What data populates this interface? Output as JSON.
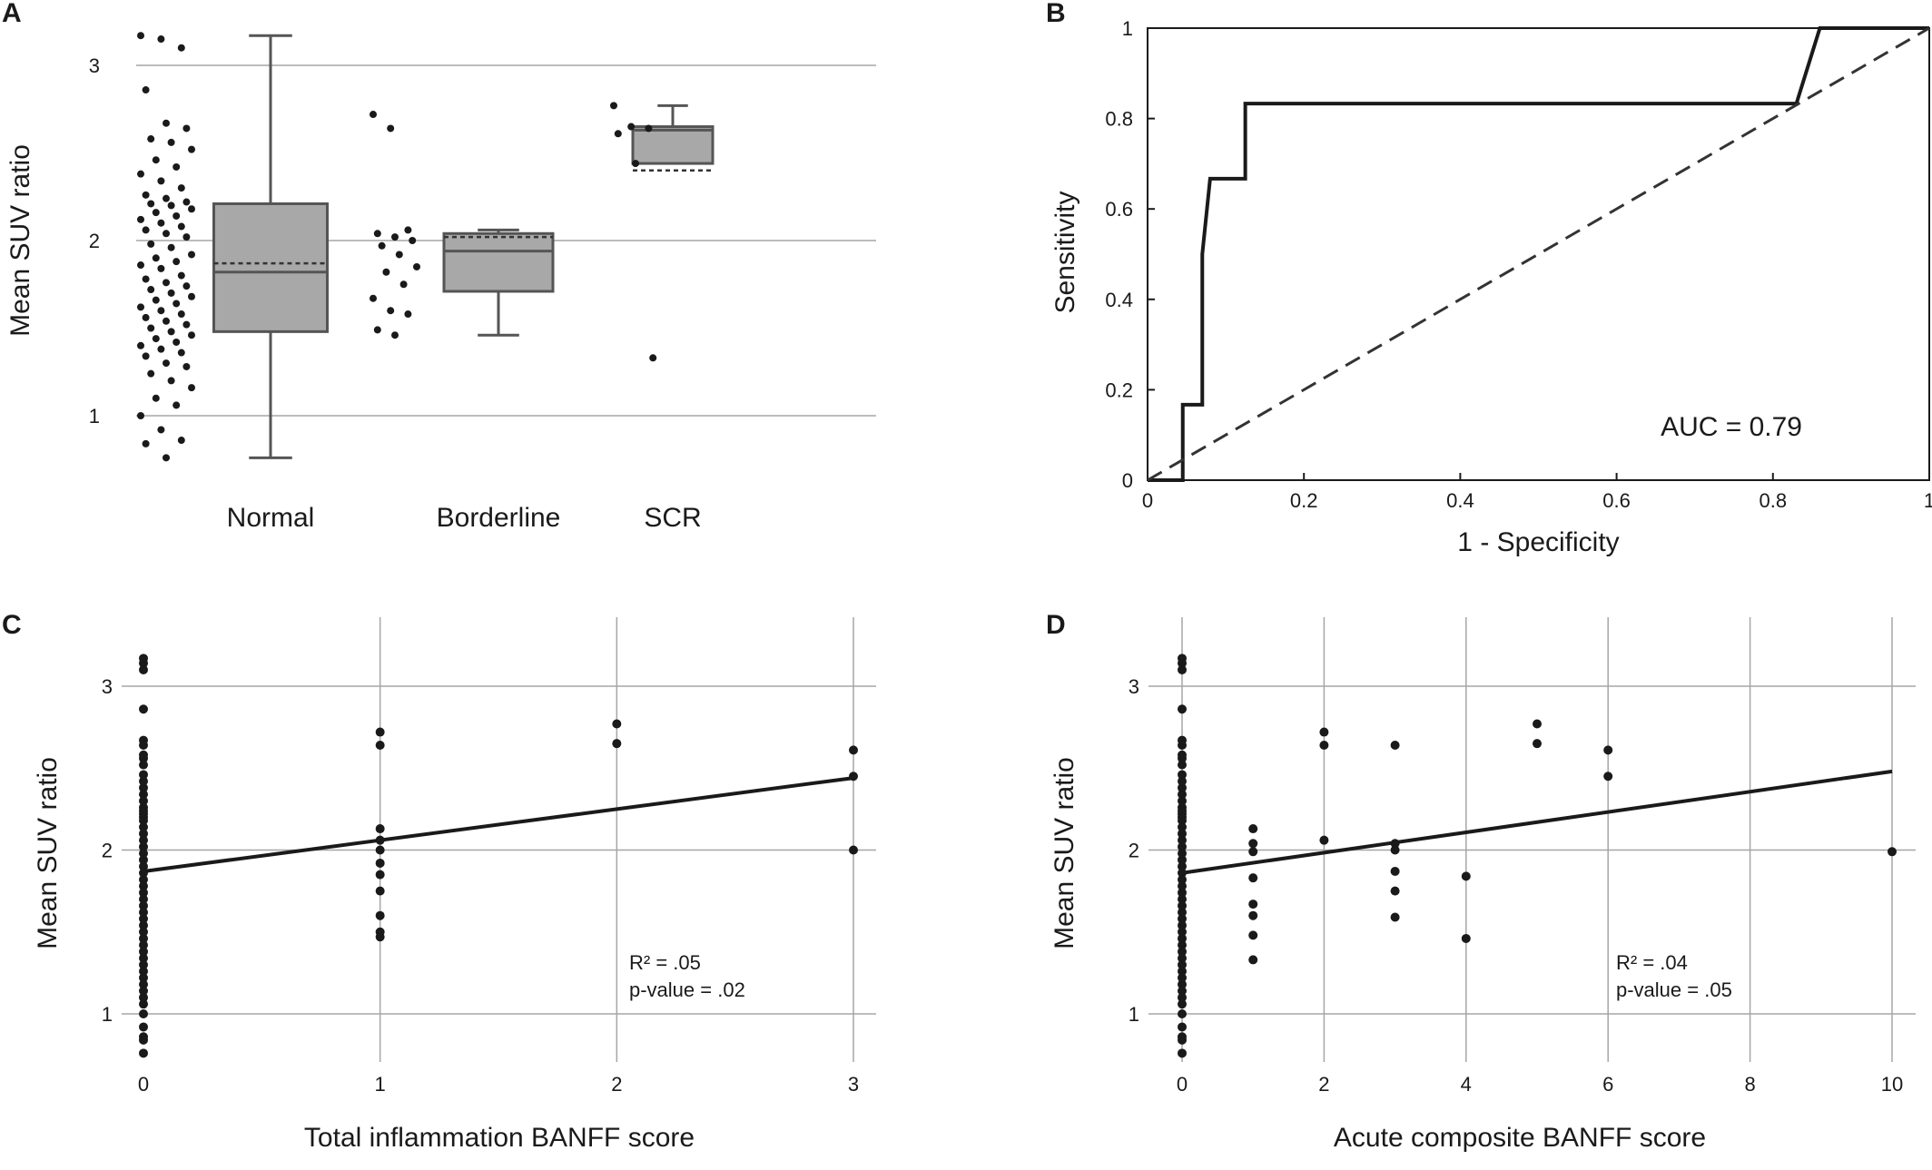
{
  "chart_data": [
    {
      "panel": "A",
      "type": "box",
      "title": "",
      "xlabel": "",
      "ylabel": "Mean SUV ratio",
      "ylim": [
        0.7,
        3.3
      ],
      "yticks": [
        "1",
        "2",
        "3"
      ],
      "grid": "horizontal",
      "categories": [
        "Normal",
        "Borderline",
        "SCR"
      ],
      "boxes": [
        {
          "category": "Normal",
          "min": 0.76,
          "q1": 1.48,
          "median": 1.82,
          "mean": 1.87,
          "q3": 2.21,
          "max": 3.17
        },
        {
          "category": "Borderline",
          "min": 1.46,
          "q1": 1.71,
          "median": 1.94,
          "mean": 2.02,
          "q3": 2.04,
          "max": 2.06
        },
        {
          "category": "SCR",
          "min": 2.44,
          "q1": 2.44,
          "median": 2.63,
          "mean": 2.4,
          "q3": 2.65,
          "max": 2.77
        }
      ],
      "points": {
        "Normal": [
          3.17,
          3.15,
          3.1,
          2.86,
          2.67,
          2.64,
          2.58,
          2.56,
          2.52,
          2.46,
          2.42,
          2.38,
          2.34,
          2.3,
          2.26,
          2.24,
          2.22,
          2.21,
          2.2,
          2.18,
          2.16,
          2.14,
          2.12,
          2.1,
          2.08,
          2.06,
          2.04,
          2.02,
          1.98,
          1.96,
          1.92,
          1.9,
          1.88,
          1.86,
          1.84,
          1.8,
          1.78,
          1.76,
          1.74,
          1.72,
          1.7,
          1.68,
          1.66,
          1.64,
          1.62,
          1.6,
          1.58,
          1.56,
          1.54,
          1.52,
          1.5,
          1.48,
          1.46,
          1.44,
          1.42,
          1.4,
          1.38,
          1.36,
          1.34,
          1.3,
          1.28,
          1.24,
          1.2,
          1.16,
          1.1,
          1.06,
          1.0,
          0.92,
          0.86,
          0.84,
          0.76
        ],
        "Borderline": [
          2.72,
          2.64,
          2.06,
          2.04,
          2.02,
          2.0,
          1.97,
          1.92,
          1.85,
          1.82,
          1.75,
          1.67,
          1.6,
          1.58,
          1.49,
          1.46
        ],
        "SCR": [
          2.77,
          2.65,
          2.64,
          2.61,
          2.44,
          1.33
        ]
      }
    },
    {
      "panel": "B",
      "type": "line",
      "title": "",
      "xlabel": "1 - Specificity",
      "ylabel": "Sensitivity",
      "xlim": [
        0,
        1
      ],
      "ylim": [
        0,
        1
      ],
      "xticks": [
        "0",
        "0.2",
        "0.4",
        "0.6",
        "0.8",
        "1"
      ],
      "yticks": [
        "0",
        "0.2",
        "0.4",
        "0.6",
        "0.8",
        "1"
      ],
      "series": [
        {
          "style": "solid",
          "x": [
            0,
            0.045,
            0.045,
            0.07,
            0.07,
            0.08,
            0.125,
            0.125,
            0.83,
            0.86,
            1.0
          ],
          "y": [
            0,
            0,
            0.167,
            0.167,
            0.5,
            0.667,
            0.667,
            0.833,
            0.833,
            1.0,
            1.0
          ]
        },
        {
          "style": "dashed",
          "x": [
            0,
            1
          ],
          "y": [
            0,
            1
          ]
        }
      ],
      "annotation": "AUC = 0.79"
    },
    {
      "panel": "C",
      "type": "scatter",
      "title": "",
      "xlabel": "Total inflammation BANFF score",
      "ylabel": "Mean SUV ratio",
      "xlim": [
        -0.1,
        3.1
      ],
      "ylim": [
        0.5,
        3.5
      ],
      "xticks": [
        "0",
        "1",
        "2",
        "3"
      ],
      "yticks": [
        "1",
        "2",
        "3"
      ],
      "grid": "both",
      "points": [
        {
          "x": 0,
          "y": [
            3.17,
            3.14,
            3.1,
            2.86,
            2.67,
            2.64,
            2.58,
            2.56,
            2.52,
            2.46,
            2.42,
            2.38,
            2.34,
            2.3,
            2.26,
            2.24,
            2.22,
            2.2,
            2.18,
            2.14,
            2.1,
            2.06,
            2.02,
            1.98,
            1.94,
            1.9,
            1.86,
            1.82,
            1.78,
            1.74,
            1.7,
            1.66,
            1.62,
            1.58,
            1.54,
            1.5,
            1.46,
            1.42,
            1.38,
            1.34,
            1.3,
            1.26,
            1.22,
            1.18,
            1.14,
            1.1,
            1.06,
            1.0,
            0.92,
            0.86,
            0.84,
            0.76
          ]
        },
        {
          "x": 1,
          "y": [
            2.72,
            2.64,
            2.13,
            2.06,
            2.0,
            1.92,
            1.85,
            1.75,
            1.6,
            1.5,
            1.47
          ]
        },
        {
          "x": 2,
          "y": [
            2.77,
            2.65
          ]
        },
        {
          "x": 3,
          "y": [
            2.61,
            2.45,
            2.0
          ]
        }
      ],
      "regression": {
        "x": [
          0,
          3
        ],
        "y": [
          1.87,
          2.44
        ]
      },
      "annotations": [
        "R² = .05",
        "p-value = .02"
      ]
    },
    {
      "panel": "D",
      "type": "scatter",
      "title": "",
      "xlabel": "Acute composite BANFF score",
      "ylabel": "Mean SUV ratio",
      "xlim": [
        -0.1,
        10.2
      ],
      "ylim": [
        0.5,
        3.5
      ],
      "xticks": [
        "0",
        "2",
        "4",
        "6",
        "8",
        "10"
      ],
      "yticks": [
        "1",
        "2",
        "3"
      ],
      "grid": "both",
      "points": [
        {
          "x": 0,
          "y": [
            3.17,
            3.14,
            3.1,
            2.86,
            2.67,
            2.64,
            2.58,
            2.56,
            2.52,
            2.46,
            2.42,
            2.38,
            2.34,
            2.3,
            2.26,
            2.24,
            2.22,
            2.2,
            2.18,
            2.14,
            2.1,
            2.06,
            2.02,
            1.98,
            1.94,
            1.9,
            1.86,
            1.82,
            1.78,
            1.74,
            1.7,
            1.66,
            1.62,
            1.58,
            1.54,
            1.5,
            1.46,
            1.42,
            1.38,
            1.34,
            1.3,
            1.26,
            1.22,
            1.18,
            1.14,
            1.1,
            1.06,
            1.0,
            0.92,
            0.86,
            0.84,
            0.76
          ]
        },
        {
          "x": 1,
          "y": [
            2.13,
            2.04,
            1.99,
            1.83,
            1.67,
            1.6,
            1.48,
            1.33
          ]
        },
        {
          "x": 2,
          "y": [
            2.72,
            2.64,
            2.06
          ]
        },
        {
          "x": 3,
          "y": [
            2.64,
            2.04,
            2.0,
            1.87,
            1.75,
            1.59
          ]
        },
        {
          "x": 4,
          "y": [
            1.84,
            1.46
          ]
        },
        {
          "x": 5,
          "y": [
            2.77,
            2.65
          ]
        },
        {
          "x": 6,
          "y": [
            2.61,
            2.45
          ]
        },
        {
          "x": 10,
          "y": [
            1.99
          ]
        }
      ],
      "regression": {
        "x": [
          0,
          10
        ],
        "y": [
          1.86,
          2.48
        ]
      },
      "annotations": [
        "R² = .04",
        "p-value = .05"
      ]
    }
  ]
}
